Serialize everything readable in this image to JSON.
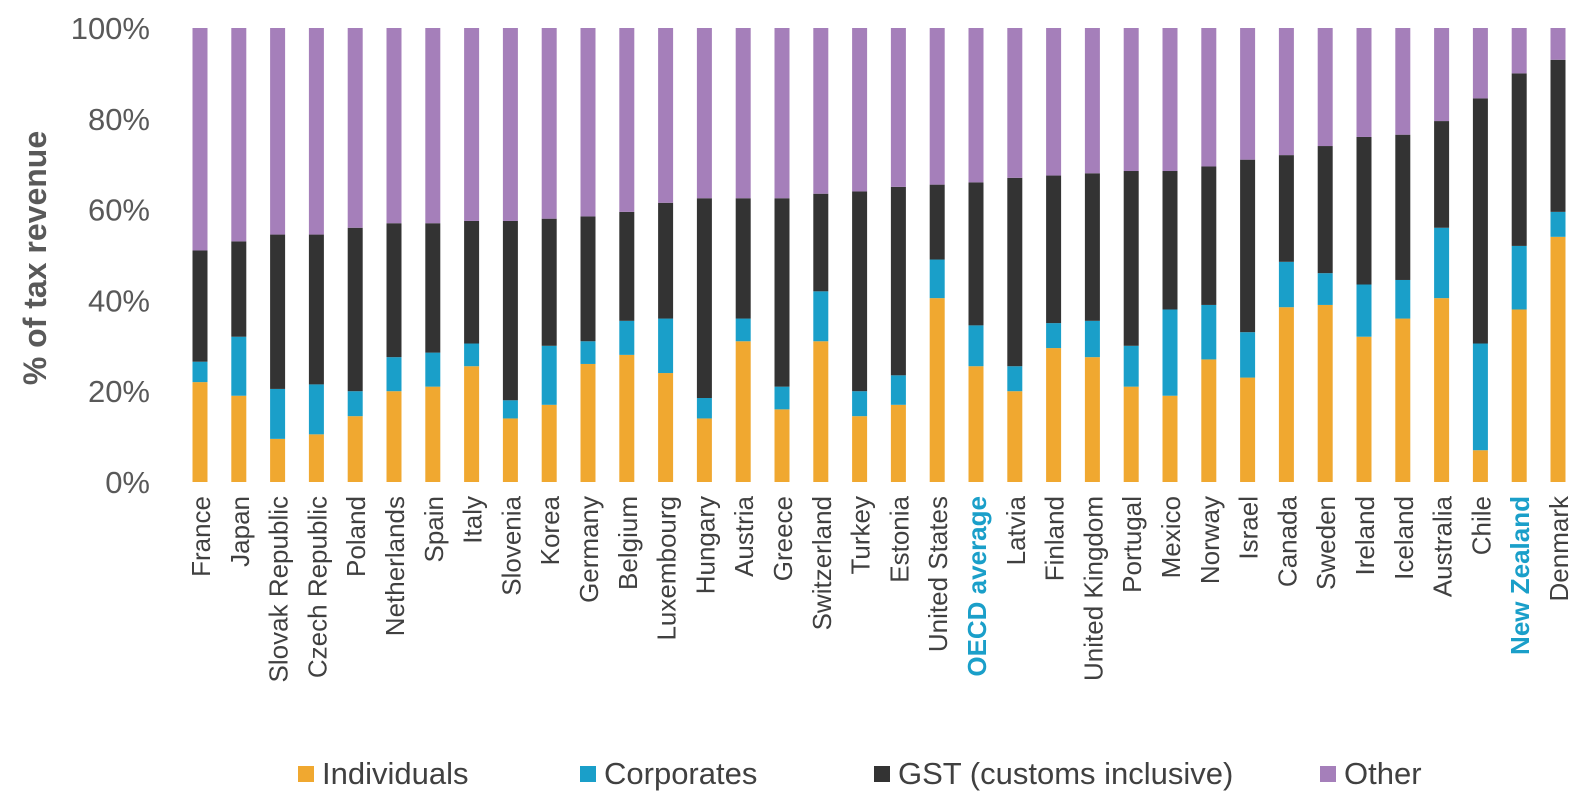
{
  "chart_data": {
    "type": "bar",
    "stacked": true,
    "ylabel": "% of tax revenue",
    "ylim": [
      0,
      100
    ],
    "yticks": [
      "0%",
      "20%",
      "40%",
      "60%",
      "80%",
      "100%"
    ],
    "grid": false,
    "legend_position": "bottom",
    "categories": [
      "France",
      "Japan",
      "Slovak Republic",
      "Czech Republic",
      "Poland",
      "Netherlands",
      "Spain",
      "Italy",
      "Slovenia",
      "Korea",
      "Germany",
      "Belgium",
      "Luxembourg",
      "Hungary",
      "Austria",
      "Greece",
      "Switzerland",
      "Turkey",
      "Estonia",
      "United States",
      "OECD average",
      "Latvia",
      "Finland",
      "United Kingdom",
      "Portugal",
      "Mexico",
      "Norway",
      "Israel",
      "Canada",
      "Sweden",
      "Ireland",
      "Iceland",
      "Australia",
      "Chile",
      "New Zealand",
      "Denmark"
    ],
    "highlighted_categories": [
      "OECD average",
      "New Zealand"
    ],
    "highlight_color": "#1a9fc9",
    "series": [
      {
        "name": "Individuals",
        "color": "#f0a830",
        "values": [
          22,
          19,
          9.5,
          10.5,
          14.5,
          20,
          21,
          25.5,
          14,
          17,
          26,
          28,
          24,
          14,
          31,
          16,
          31,
          14.5,
          17,
          40.5,
          25.5,
          20,
          29.5,
          27.5,
          21,
          19,
          27,
          23,
          38.5,
          39,
          32,
          36,
          40.5,
          7,
          38,
          54
        ]
      },
      {
        "name": "Corporates",
        "color": "#1a9fc9",
        "values": [
          4.5,
          13,
          11,
          11,
          5.5,
          7.5,
          7.5,
          5,
          4,
          13,
          5,
          7.5,
          12,
          4.5,
          5,
          5,
          11,
          5.5,
          6.5,
          8.5,
          9,
          5.5,
          5.5,
          8,
          9,
          19,
          12,
          10,
          10,
          7,
          11.5,
          8.5,
          15.5,
          23.5,
          14,
          5.5
        ]
      },
      {
        "name": "GST (customs inclusive)",
        "color": "#333333",
        "values": [
          24.5,
          21,
          34,
          33,
          36,
          29.5,
          28.5,
          27,
          39.5,
          28,
          27.5,
          24,
          25.5,
          44,
          26.5,
          41.5,
          21.5,
          44,
          41.5,
          16.5,
          31.5,
          41.5,
          32.5,
          32.5,
          38.5,
          30.5,
          30.5,
          38,
          23.5,
          28,
          32.5,
          32,
          23.5,
          54,
          38,
          33.5
        ]
      },
      {
        "name": "Other",
        "color": "#a57fba",
        "values": [
          49,
          47,
          45.5,
          45.5,
          44,
          43,
          43,
          42.5,
          42.5,
          42,
          41.5,
          40.5,
          38.5,
          37.5,
          37.5,
          37.5,
          36.5,
          36,
          35,
          34.5,
          34,
          33,
          32.5,
          32,
          31.5,
          31.5,
          30.5,
          29,
          28,
          26,
          24,
          23.5,
          20.5,
          15.5,
          10,
          7
        ]
      }
    ]
  }
}
